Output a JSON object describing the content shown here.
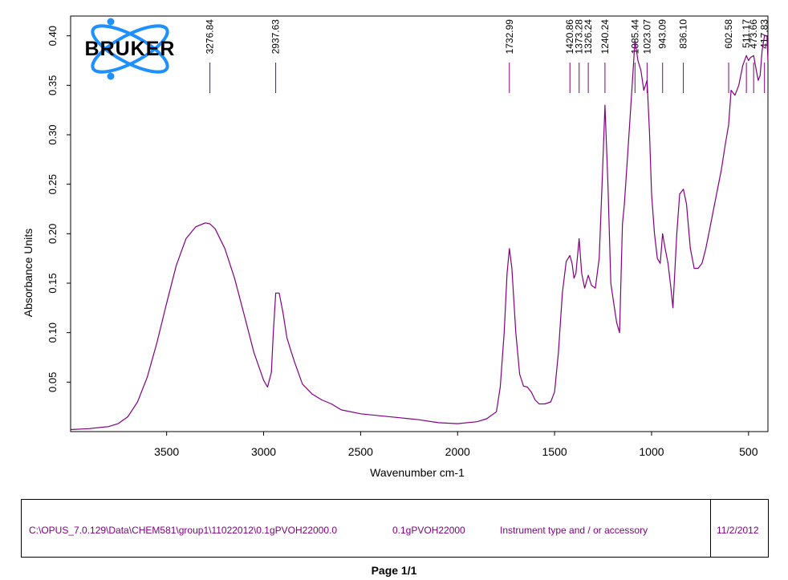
{
  "colors": {
    "trace": "#800080",
    "logo_blue": "#1e90ff",
    "logo_text": "#000000"
  },
  "logo": {
    "text": "BRUKER"
  },
  "chart_data": {
    "type": "line",
    "xlabel": "Wavenumber cm-1",
    "ylabel": "Absorbance Units",
    "xlim": [
      3995,
      400
    ],
    "ylim": [
      0,
      0.42
    ],
    "x_ticks": [
      3500,
      3000,
      2500,
      2000,
      1500,
      1000,
      500
    ],
    "y_ticks": [
      0.05,
      0.1,
      0.15,
      0.2,
      0.25,
      0.3,
      0.35,
      0.4
    ],
    "y_tick_labels": [
      "0.05",
      "0.10",
      "0.15",
      "0.20",
      "0.25",
      "0.30",
      "0.35",
      "0.40"
    ],
    "peak_labels": [
      "3276.84",
      "2937.63",
      "1732.99",
      "1420.86",
      "1373.28",
      "1326.24",
      "1240.24",
      "1085.44",
      "1023.07",
      "943.09",
      "836.10",
      "602.58",
      "511.17",
      "473.66",
      "417.83"
    ],
    "series": [
      {
        "x": [
          3995,
          3900,
          3800,
          3750,
          3700,
          3650,
          3600,
          3550,
          3500,
          3450,
          3400,
          3350,
          3300,
          3276.84,
          3250,
          3200,
          3150,
          3100,
          3050,
          3000,
          2980,
          2960,
          2950,
          2937.63,
          2920,
          2900,
          2880,
          2860,
          2840,
          2800,
          2750,
          2700,
          2650,
          2600,
          2500,
          2400,
          2300,
          2200,
          2100,
          2000,
          1900,
          1850,
          1800,
          1780,
          1760,
          1745,
          1732.99,
          1720,
          1700,
          1680,
          1660,
          1640,
          1620,
          1600,
          1580,
          1550,
          1520,
          1500,
          1480,
          1460,
          1440,
          1420.86,
          1410,
          1400,
          1390,
          1373.28,
          1360,
          1345,
          1326.24,
          1310,
          1290,
          1270,
          1255,
          1240.24,
          1225,
          1210,
          1195,
          1180,
          1165,
          1150,
          1140,
          1120,
          1100,
          1085.44,
          1070,
          1055,
          1040,
          1023.07,
          1010,
          1000,
          985,
          970,
          955,
          943.09,
          930,
          915,
          900,
          890,
          870,
          855,
          836.1,
          820,
          800,
          780,
          760,
          740,
          720,
          700,
          680,
          660,
          640,
          620,
          602.58,
          590,
          570,
          550,
          530,
          511.17,
          500,
          490,
          473.66,
          460,
          450,
          440,
          430,
          417.83,
          405,
          400
        ],
        "values": [
          0.002,
          0.003,
          0.005,
          0.008,
          0.015,
          0.03,
          0.055,
          0.09,
          0.13,
          0.168,
          0.195,
          0.207,
          0.211,
          0.21,
          0.205,
          0.185,
          0.155,
          0.118,
          0.08,
          0.052,
          0.045,
          0.06,
          0.1,
          0.14,
          0.14,
          0.12,
          0.095,
          0.082,
          0.07,
          0.048,
          0.038,
          0.032,
          0.028,
          0.022,
          0.018,
          0.016,
          0.014,
          0.012,
          0.009,
          0.008,
          0.01,
          0.013,
          0.02,
          0.045,
          0.1,
          0.16,
          0.185,
          0.165,
          0.1,
          0.058,
          0.046,
          0.045,
          0.04,
          0.032,
          0.028,
          0.028,
          0.03,
          0.04,
          0.08,
          0.14,
          0.172,
          0.178,
          0.17,
          0.155,
          0.16,
          0.195,
          0.16,
          0.145,
          0.158,
          0.148,
          0.145,
          0.175,
          0.25,
          0.33,
          0.25,
          0.15,
          0.13,
          0.11,
          0.1,
          0.21,
          0.23,
          0.29,
          0.35,
          0.395,
          0.375,
          0.365,
          0.345,
          0.355,
          0.3,
          0.24,
          0.2,
          0.175,
          0.17,
          0.2,
          0.185,
          0.17,
          0.145,
          0.125,
          0.2,
          0.24,
          0.245,
          0.23,
          0.185,
          0.165,
          0.165,
          0.17,
          0.185,
          0.205,
          0.225,
          0.245,
          0.265,
          0.29,
          0.31,
          0.345,
          0.34,
          0.35,
          0.37,
          0.38,
          0.375,
          0.378,
          0.38,
          0.365,
          0.355,
          0.36,
          0.385,
          0.4,
          0.4,
          0.375
        ]
      }
    ]
  },
  "footer": {
    "path": "C:\\OPUS_7.0.129\\Data\\CHEM581\\group1\\11022012\\0.1gPVOH22000.0",
    "sample": "0.1gPVOH22000",
    "instrument": "Instrument type and / or accessory",
    "date": "11/2/2012"
  },
  "page": {
    "label": "Page 1/1"
  }
}
